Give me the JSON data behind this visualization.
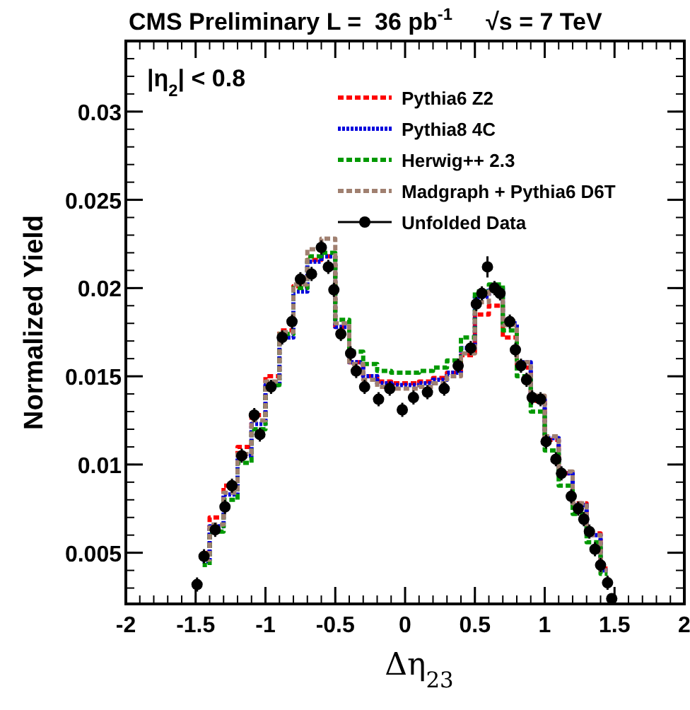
{
  "chart_data": {
    "type": "step",
    "title": "CMS Preliminary L =  36 pb$^{-1}$     √s = 7 TeV",
    "xlabel": "Δη$_{23}$",
    "ylabel": "Normalized Yield",
    "annotations": [
      "|η$_{2}$| < 0.8"
    ],
    "xlim": [
      -2,
      2
    ],
    "xticks": [
      -2,
      -1.5,
      -1,
      -0.5,
      0,
      0.5,
      1,
      1.5,
      2
    ],
    "ylim": [
      0.0021,
      0.034
    ],
    "yticks": [
      0.005,
      0.01,
      0.015,
      0.02,
      0.025,
      0.03
    ],
    "grid": false,
    "legend": "top right",
    "x": [
      -1.45,
      -1.35,
      -1.25,
      -1.15,
      -1.05,
      -0.95,
      -0.85,
      -0.75,
      -0.65,
      -0.55,
      -0.45,
      -0.35,
      -0.25,
      -0.15,
      -0.05,
      0.05,
      0.15,
      0.25,
      0.35,
      0.45,
      0.55,
      0.65,
      0.75,
      0.85,
      0.95,
      1.05,
      1.15,
      1.25,
      1.35,
      1.45
    ],
    "series": [
      {
        "name": "Pythia6 Z2",
        "color": "#ff0000",
        "line_style": "dashed",
        "values": [
          0.005,
          0.007,
          0.0088,
          0.011,
          0.0128,
          0.015,
          0.0176,
          0.0201,
          0.0216,
          0.0218,
          0.0178,
          0.0158,
          0.015,
          0.0147,
          0.0146,
          0.0146,
          0.0147,
          0.0149,
          0.0152,
          0.0162,
          0.0185,
          0.019,
          0.0172,
          0.0155,
          0.0136,
          0.0114,
          0.0095,
          0.0078,
          0.0061,
          0.0041
        ]
      },
      {
        "name": "Pythia8 4C",
        "color": "#0000dd",
        "line_style": "dotted",
        "values": [
          0.0045,
          0.0065,
          0.0083,
          0.0105,
          0.0123,
          0.0145,
          0.0172,
          0.0198,
          0.0215,
          0.0218,
          0.0178,
          0.0158,
          0.015,
          0.0146,
          0.0145,
          0.0145,
          0.0146,
          0.0148,
          0.0152,
          0.0166,
          0.0195,
          0.02,
          0.018,
          0.0158,
          0.0138,
          0.0115,
          0.0095,
          0.0077,
          0.006,
          0.004
        ]
      },
      {
        "name": "Herwig++ 2.3",
        "color": "#009900",
        "line_style": "dashed",
        "values": [
          0.0043,
          0.0062,
          0.008,
          0.0101,
          0.012,
          0.0145,
          0.0174,
          0.02,
          0.0218,
          0.022,
          0.0182,
          0.0164,
          0.0157,
          0.0153,
          0.0152,
          0.0152,
          0.0153,
          0.0155,
          0.0159,
          0.0172,
          0.0198,
          0.0202,
          0.0176,
          0.015,
          0.013,
          0.0108,
          0.0088,
          0.0072,
          0.0056,
          0.0038
        ]
      },
      {
        "name": "Madgraph + Pythia6 D6T",
        "color": "#a08070",
        "line_style": "dashed",
        "values": [
          0.0046,
          0.0066,
          0.0084,
          0.0106,
          0.0125,
          0.0147,
          0.0175,
          0.0202,
          0.0222,
          0.0228,
          0.018,
          0.0157,
          0.0148,
          0.0144,
          0.0143,
          0.0143,
          0.0144,
          0.0146,
          0.015,
          0.0163,
          0.0192,
          0.0198,
          0.0179,
          0.0158,
          0.0139,
          0.0116,
          0.0096,
          0.0078,
          0.006,
          0.004
        ]
      },
      {
        "name": "Unfolded Data",
        "type": "scatter",
        "marker": "circle",
        "color": "#000000",
        "x": [
          -1.49,
          -1.44,
          -1.36,
          -1.29,
          -1.24,
          -1.17,
          -1.08,
          -1.04,
          -0.96,
          -0.88,
          -0.81,
          -0.75,
          -0.67,
          -0.6,
          -0.55,
          -0.51,
          -0.46,
          -0.39,
          -0.35,
          -0.29,
          -0.19,
          -0.11,
          -0.02,
          0.06,
          0.16,
          0.28,
          0.38,
          0.47,
          0.51,
          0.55,
          0.59,
          0.64,
          0.68,
          0.75,
          0.79,
          0.83,
          0.87,
          0.91,
          0.97,
          1.01,
          1.08,
          1.12,
          1.19,
          1.24,
          1.28,
          1.32,
          1.36,
          1.4,
          1.45,
          1.48
        ],
        "values": [
          0.0032,
          0.0048,
          0.0063,
          0.0076,
          0.0088,
          0.0105,
          0.0128,
          0.0117,
          0.0144,
          0.0172,
          0.0181,
          0.0205,
          0.0208,
          0.0223,
          0.0212,
          0.0199,
          0.0174,
          0.0163,
          0.0153,
          0.0144,
          0.0137,
          0.0143,
          0.0131,
          0.0138,
          0.0141,
          0.0143,
          0.0156,
          0.0166,
          0.0191,
          0.0197,
          0.0212,
          0.02,
          0.0197,
          0.0181,
          0.0165,
          0.0156,
          0.0148,
          0.0138,
          0.0137,
          0.0113,
          0.0103,
          0.0095,
          0.0082,
          0.0075,
          0.0069,
          0.0062,
          0.0052,
          0.0043,
          0.0033,
          0.0024
        ],
        "errors": [
          0.0004,
          0.0004,
          0.0004,
          0.0004,
          0.0004,
          0.0004,
          0.0004,
          0.0004,
          0.0004,
          0.0004,
          0.0004,
          0.0004,
          0.0004,
          0.0004,
          0.0004,
          0.0004,
          0.0004,
          0.0004,
          0.0004,
          0.0004,
          0.0004,
          0.0004,
          0.0004,
          0.0004,
          0.0004,
          0.0004,
          0.0004,
          0.0004,
          0.0004,
          0.0004,
          0.0006,
          0.0004,
          0.0004,
          0.0004,
          0.0004,
          0.0004,
          0.0004,
          0.0004,
          0.0004,
          0.0004,
          0.0004,
          0.0004,
          0.0004,
          0.0004,
          0.0004,
          0.0004,
          0.0004,
          0.0004,
          0.0004,
          0.0003
        ]
      }
    ]
  }
}
